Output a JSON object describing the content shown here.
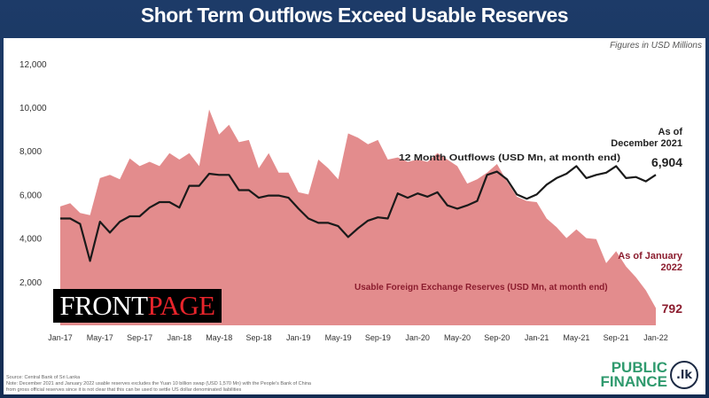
{
  "header": {
    "title": "Short Term Outflows Exceed Usable Reserves"
  },
  "units_note": "Figures in USD Millions",
  "watermark": {
    "part1": "FRONT",
    "part2": "PAGE"
  },
  "source": {
    "line1": "Source: Central Bank of Sri Lanka",
    "line2": "Note:  December 2021 and January 2022 usable  reserves excludes the Yuan 10 billion swap (USD 1,570 Mn) with the People's Bank of China",
    "line3": "from gross official reserves since it is not clear that this can be used to settle US dollar denominated liabilities"
  },
  "logo": {
    "line1": "PUBLIC",
    "line2": "FINANCE",
    "badge": ".lk"
  },
  "colors": {
    "reserves_area": "#e38c8d",
    "outflow_line": "#1a1a1a",
    "reserves_text": "#8b1c2e",
    "header": "#1b3764"
  },
  "chart_data": {
    "type": "area+line",
    "title": "Short Term Outflows Exceed Usable Reserves",
    "ylim": [
      0,
      12000
    ],
    "yticks": [
      "2,000",
      "4,000",
      "6,000",
      "8,000",
      "10,000",
      "12,000"
    ],
    "ytick_values": [
      2000,
      4000,
      6000,
      8000,
      10000,
      12000
    ],
    "xtick_labels": [
      "Jan-17",
      "May-17",
      "Sep-17",
      "Jan-18",
      "May-18",
      "Sep-18",
      "Jan-19",
      "May-19",
      "Sep-19",
      "Jan-20",
      "May-20",
      "Sep-20",
      "Jan-21",
      "May-21",
      "Sep-21",
      "Jan-22"
    ],
    "x_start": "Jan-17",
    "x_end": "Jan-22",
    "x_step": "monthly",
    "grid": false,
    "series": [
      {
        "name": "Usable Foreign Exchange Reserves (USD Mn, at month end)",
        "type": "area",
        "values": [
          5450,
          5600,
          5150,
          5050,
          6750,
          6900,
          6700,
          7650,
          7300,
          7500,
          7300,
          7900,
          7600,
          7900,
          7300,
          9900,
          8750,
          9200,
          8400,
          8500,
          7200,
          7900,
          7000,
          7000,
          6100,
          6000,
          7600,
          7200,
          6700,
          8800,
          8600,
          8300,
          8500,
          7600,
          7700,
          7500,
          7600,
          7500,
          7900,
          7600,
          7300,
          6500,
          6700,
          7000,
          7400,
          6600,
          5900,
          5700,
          5650,
          4900,
          4500,
          4000,
          4400,
          4000,
          3950,
          2850,
          3400,
          2700,
          2200,
          1600,
          792
        ]
      },
      {
        "name": "12 Month Outflows (USD Mn, at month end)",
        "type": "line",
        "values": [
          4900,
          4900,
          4650,
          2950,
          4750,
          4250,
          4750,
          5000,
          5000,
          5400,
          5650,
          5650,
          5400,
          6400,
          6400,
          6950,
          6900,
          6900,
          6200,
          6200,
          5850,
          5950,
          5950,
          5850,
          5350,
          4900,
          4700,
          4700,
          4550,
          4050,
          4450,
          4800,
          4950,
          4900,
          6050,
          5850,
          6050,
          5900,
          6100,
          5500,
          5350,
          5500,
          5700,
          6900,
          7050,
          6700,
          6000,
          5800,
          6000,
          6450,
          6750,
          6950,
          7300,
          6750,
          6900,
          7000,
          7300,
          6750,
          6800,
          6600,
          6904
        ]
      }
    ],
    "annotations": {
      "outflow_asof": "As of",
      "outflow_asof2": "December 2021",
      "outflow_value": "6,904",
      "reserve_asof": "As of January",
      "reserve_asof2": "2022",
      "reserve_value": "792",
      "outflow_label": "12 Month Outflows (USD Mn, at month end)",
      "reserve_label": "Usable Foreign Exchange Reserves (USD Mn, at month end)"
    }
  }
}
